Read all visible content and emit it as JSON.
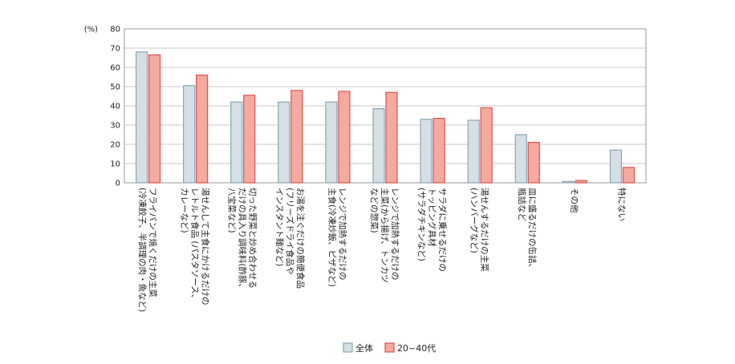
{
  "chart_data": {
    "type": "bar",
    "unit_label": "(%)",
    "ylim": [
      0,
      80
    ],
    "yticks": [
      0,
      10,
      20,
      30,
      40,
      50,
      60,
      70,
      80
    ],
    "grid": true,
    "legend_position": "bottom-center",
    "categories": [
      [
        "フライパンで焼くだけの主菜",
        "(冷凍餃子、半調理の肉・魚など)"
      ],
      [
        "湯せんして主食にかけるだけの",
        "レトルト食品 (パスタソース、",
        "カレーなど)"
      ],
      [
        "切った野菜と炒め合わせる",
        "だけの具入り調味料(酢豚、",
        "八宝菜など)"
      ],
      [
        "お湯を注ぐだけの簡便食品",
        "(フリーズドライ食品や",
        "インスタント麺など)"
      ],
      [
        "レンジで加熱するだけの",
        "主食(冷凍炒飯、ピザなど)"
      ],
      [
        "レンジで加熱するだけの",
        "主菜(から揚げ、トンカツ",
        "などの惣菜)"
      ],
      [
        "サラダに乗せるだけの",
        "トッピング具材",
        "(サラダチキンなど)"
      ],
      [
        "湯せんするだけの主菜",
        "(ハンバーグなど)"
      ],
      [
        "皿に盛るだけの缶詰、",
        "瓶詰など"
      ],
      [
        "その他"
      ],
      [
        "特にない"
      ]
    ],
    "series": [
      {
        "name": "全体",
        "color": "#d5dfe4",
        "stroke": "#8aa6b3",
        "values": [
          68,
          50.5,
          42,
          42,
          42,
          38.5,
          33,
          32.5,
          25,
          0.7,
          17
        ]
      },
      {
        "name": "20~40代",
        "color": "#f5aaa0",
        "stroke": "#d9534f",
        "values": [
          66.5,
          56,
          45.5,
          48,
          47.5,
          47,
          33.5,
          39,
          21,
          1.2,
          8
        ]
      }
    ]
  }
}
